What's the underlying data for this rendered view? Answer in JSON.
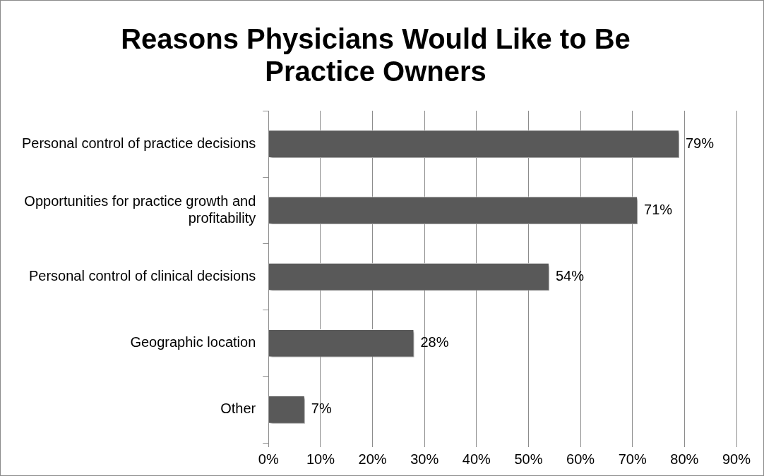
{
  "chart_data": {
    "type": "bar",
    "orientation": "horizontal",
    "title": "Reasons Physicians Would Like to Be Practice Owners",
    "categories": [
      "Personal control of practice decisions",
      "Opportunities for practice growth and profitability",
      "Personal control of clinical decisions",
      "Geographic location",
      "Other"
    ],
    "values": [
      79,
      71,
      54,
      28,
      7
    ],
    "value_labels": [
      "79%",
      "71%",
      "54%",
      "28%",
      "7%"
    ],
    "color": "#595959",
    "xlim": [
      0,
      90
    ],
    "xticks": [
      {
        "value": 0,
        "label": "0%"
      },
      {
        "value": 10,
        "label": "10%"
      },
      {
        "value": 20,
        "label": "20%"
      },
      {
        "value": 30,
        "label": "30%"
      },
      {
        "value": 40,
        "label": "40%"
      },
      {
        "value": 50,
        "label": "50%"
      },
      {
        "value": 60,
        "label": "60%"
      },
      {
        "value": 70,
        "label": "70%"
      },
      {
        "value": 80,
        "label": "80%"
      },
      {
        "value": 90,
        "label": "90%"
      }
    ],
    "grid": "x",
    "legend": false
  }
}
